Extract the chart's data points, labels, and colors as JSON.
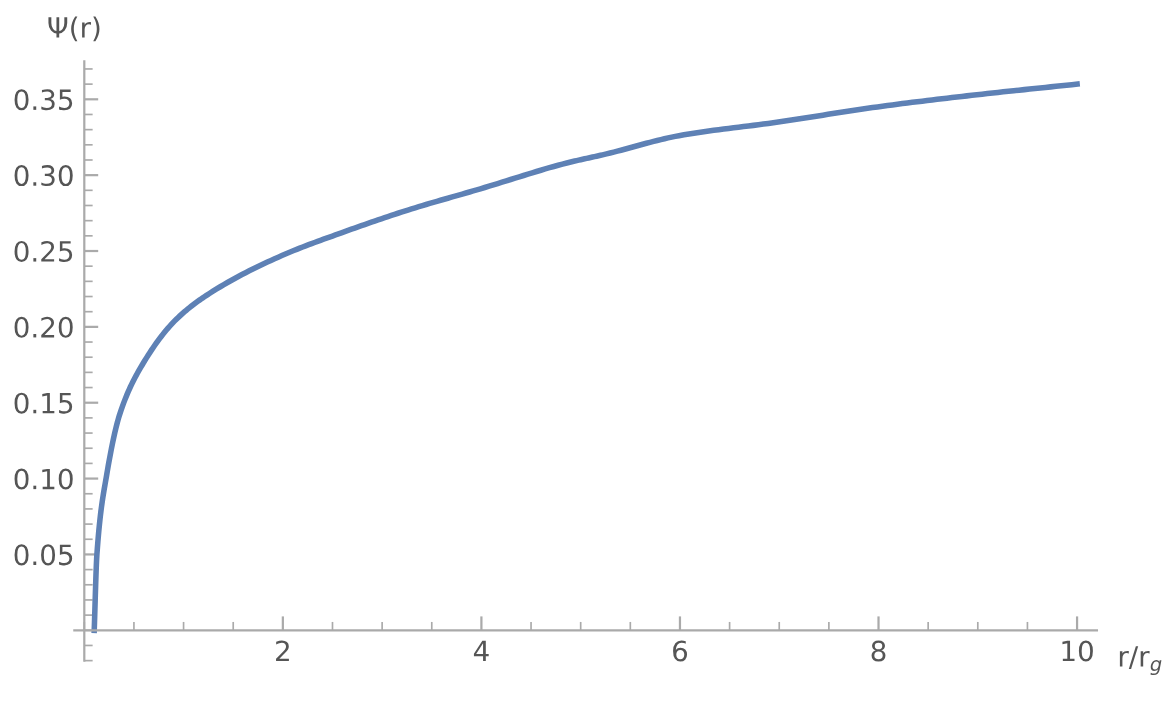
{
  "chart_data": {
    "type": "line",
    "xlabel": "r/r$_{g}$",
    "ylabel": "Ψ(r)",
    "xlim": [
      -0.1,
      10.2
    ],
    "ylim": [
      -0.02,
      0.375
    ],
    "xticks": [
      2,
      4,
      6,
      8,
      10
    ],
    "yticks": [
      0.05,
      {
        "value": 0.1,
        "label": "0.10"
      },
      0.15,
      {
        "value": 0.2,
        "label": "0.20"
      },
      0.25,
      {
        "value": 0.3,
        "label": "0.30"
      },
      0.35
    ],
    "grid": false,
    "legend": false,
    "marker": "none",
    "line_style": "solid",
    "series": [
      {
        "color": "#5e81b5",
        "x": [
          0.1,
          0.127,
          0.227,
          0.36,
          0.593,
          0.927,
          1.26,
          1.99,
          2.59,
          3.26,
          3.99,
          4.86,
          5.26,
          5.99,
          6.99,
          7.99,
          8.99,
          10.0
        ],
        "values": [
          0.0,
          0.05,
          0.103,
          0.143,
          0.176,
          0.205,
          0.222,
          0.247,
          0.262,
          0.277,
          0.291,
          0.308,
          0.314,
          0.326,
          0.335,
          0.345,
          0.353,
          0.36
        ]
      }
    ]
  }
}
